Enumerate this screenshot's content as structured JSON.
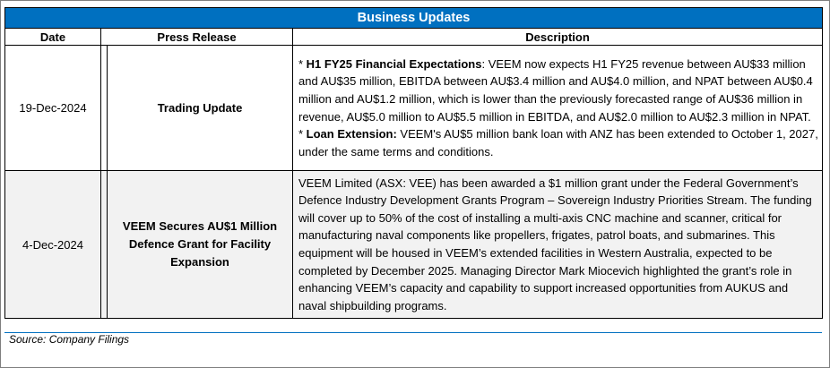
{
  "title": "Business Updates",
  "columns": {
    "date": "Date",
    "press_release": "Press Release",
    "description": "Description"
  },
  "rows": [
    {
      "date": "19-Dec-2024",
      "press_release": "Trading Update",
      "bullets": [
        {
          "marker": "* ",
          "label": "H1 FY25 Financial Expectations",
          "sep": ": ",
          "text": "VEEM now expects H1 FY25 revenue between AU$33 million and AU$35 million, EBITDA between AU$3.4 million and AU$4.0 million, and NPAT between AU$0.4 million and AU$1.2 million, which is lower than the previously forecasted range of AU$36 million in revenue, AU$5.0 million to AU$5.5 million in EBITDA, and AU$2.0 million to AU$2.3 million in NPAT."
        },
        {
          "marker": "* ",
          "label": "Loan Extension:",
          "sep": " ",
          "text": "VEEM's AU$5 million bank loan with ANZ has been extended to October 1, 2027, under the same terms and conditions."
        }
      ]
    },
    {
      "date": "4-Dec-2024",
      "press_release": "VEEM Secures AU$1 Million Defence Grant for Facility Expansion",
      "description": "VEEM Limited (ASX: VEE) has been awarded a $1 million grant under the Federal Government’s Defence Industry Development Grants Program – Sovereign Industry Priorities Stream. The funding will cover up to 50% of the cost of installing a multi-axis CNC machine and scanner, critical for manufacturing naval components like propellers, frigates, patrol boats, and submarines. This equipment will be housed in VEEM’s extended facilities in Western Australia, expected to be completed by December 2025. Managing Director Mark Miocevich highlighted the grant’s role in enhancing VEEM’s capacity and capability to support increased opportunities from AUKUS and naval shipbuilding programs."
    }
  ],
  "source": "Source: Company Filings",
  "colors": {
    "header": "#0070c0",
    "alt_row": "#f2f2f2"
  }
}
